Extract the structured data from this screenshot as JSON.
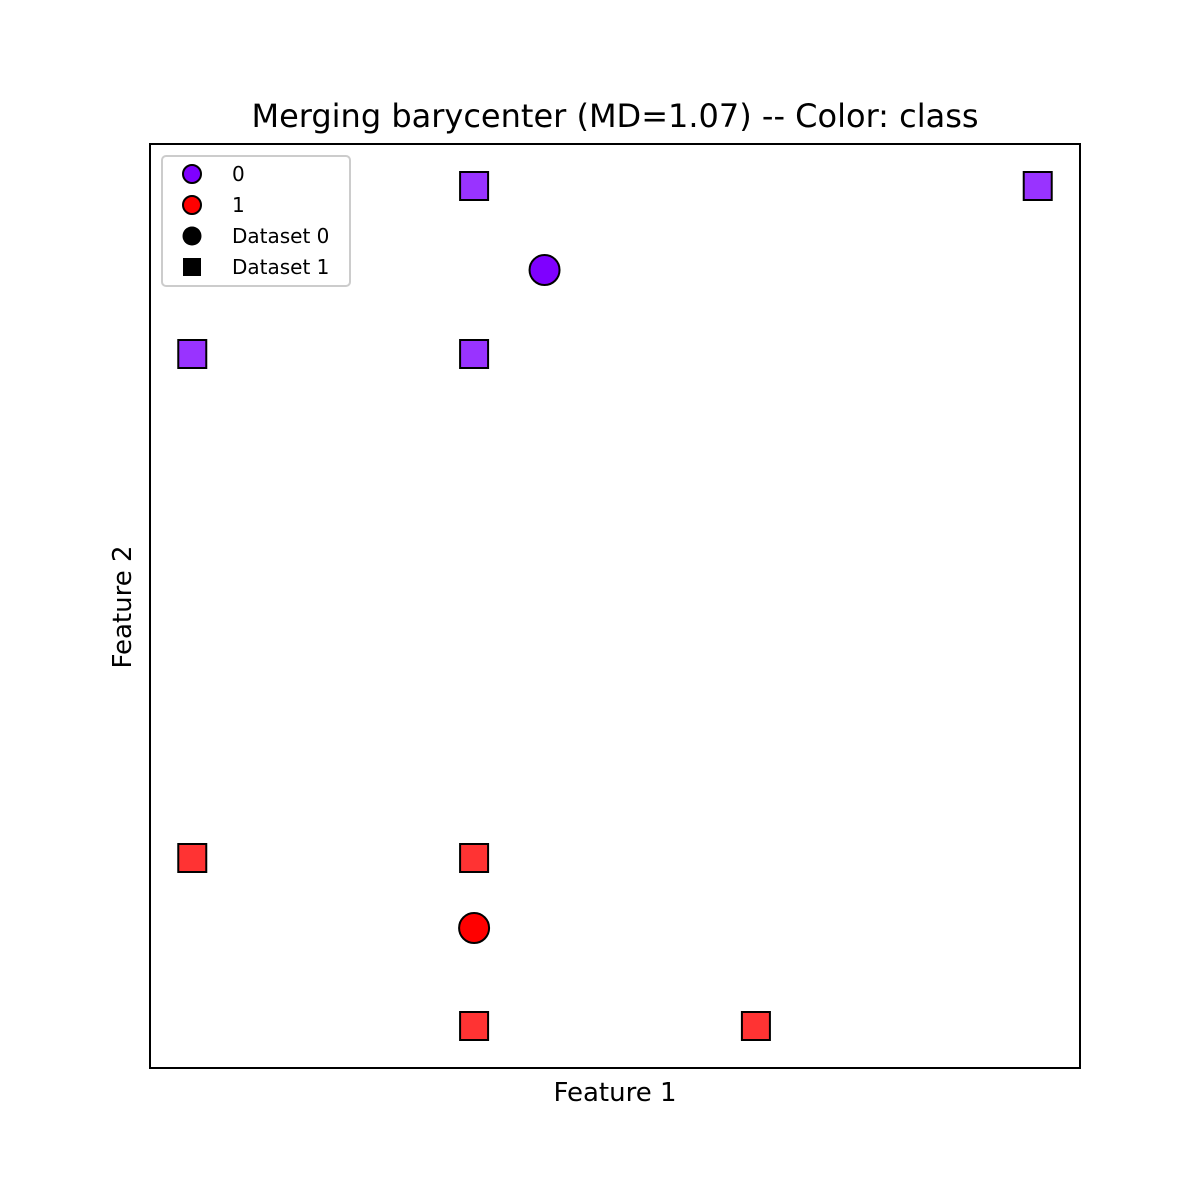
{
  "chart_data": {
    "type": "scatter",
    "title": "Merging barycenter (MD=1.07) -- Color: class",
    "xlabel": "Feature 1",
    "ylabel": "Feature 2",
    "xlim": [
      -0.15,
      3.15
    ],
    "ylim": [
      -0.15,
      3.15
    ],
    "grid": false,
    "ticks_visible": false,
    "legend_position": "top-left",
    "class_colors": {
      "0": "#7f00ff",
      "1": "#ff0000"
    },
    "legend": [
      {
        "label": "0",
        "marker": "circle",
        "color": "#7f00ff"
      },
      {
        "label": "1",
        "marker": "circle",
        "color": "#ff0000"
      },
      {
        "label": "Dataset 0",
        "marker": "circle",
        "color": "#000000"
      },
      {
        "label": "Dataset 1",
        "marker": "square",
        "color": "#000000"
      }
    ],
    "series": [
      {
        "name": "Dataset 0",
        "marker": "circle",
        "points": [
          {
            "x": 1.25,
            "y": 2.7,
            "class": 0
          },
          {
            "x": 1.0,
            "y": 0.35,
            "class": 1
          }
        ]
      },
      {
        "name": "Dataset 1",
        "marker": "square",
        "points": [
          {
            "x": 0,
            "y": 2.4,
            "class": 0
          },
          {
            "x": 1,
            "y": 2.4,
            "class": 0
          },
          {
            "x": 1,
            "y": 3,
            "class": 0
          },
          {
            "x": 3,
            "y": 3,
            "class": 0
          },
          {
            "x": 0,
            "y": 0.6,
            "class": 1
          },
          {
            "x": 1,
            "y": 0.6,
            "class": 1
          },
          {
            "x": 1,
            "y": 0,
            "class": 1
          },
          {
            "x": 2,
            "y": 0,
            "class": 1
          }
        ]
      }
    ]
  }
}
